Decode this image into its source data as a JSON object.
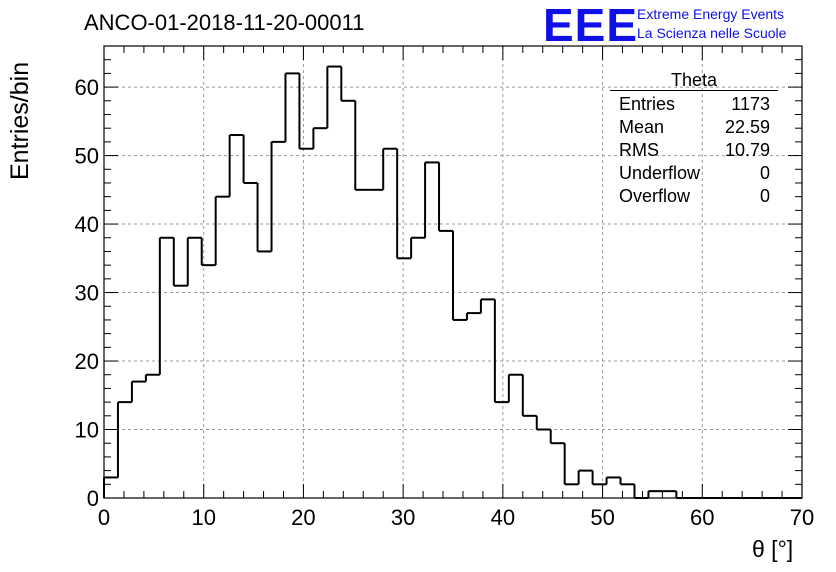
{
  "header": {
    "run_title": "ANCO-01-2018-11-20-00011",
    "logo_mark": "EEE",
    "logo_line1": "Extreme Energy Events",
    "logo_line2": "La Scienza nelle Scuole"
  },
  "stats": {
    "name": "Theta",
    "rows": [
      {
        "label": "Entries",
        "value": "1173"
      },
      {
        "label": "Mean",
        "value": "22.59"
      },
      {
        "label": "RMS",
        "value": "10.79"
      },
      {
        "label": "Underflow",
        "value": "0"
      },
      {
        "label": "Overflow",
        "value": "0"
      }
    ]
  },
  "colors": {
    "line": "#000000",
    "logo": "#1010e6",
    "grid": "#9a9a9a"
  },
  "chart_data": {
    "type": "histogram",
    "title": "ANCO-01-2018-11-20-00011",
    "xlabel": "θ [°]",
    "ylabel": "Entries/bin",
    "xlim": [
      0,
      70
    ],
    "ylim": [
      0,
      66
    ],
    "grid": true,
    "bin_width": 1.4,
    "xticks": [
      0,
      10,
      20,
      30,
      40,
      50,
      60,
      70
    ],
    "yticks": [
      0,
      10,
      20,
      30,
      40,
      50,
      60
    ],
    "values": [
      3,
      14,
      17,
      18,
      38,
      31,
      38,
      34,
      44,
      53,
      46,
      36,
      52,
      62,
      51,
      54,
      63,
      58,
      45,
      45,
      51,
      35,
      38,
      49,
      39,
      26,
      27,
      29,
      14,
      18,
      12,
      10,
      8,
      2,
      4,
      2,
      3,
      2,
      0,
      1,
      1,
      0,
      0,
      0,
      0,
      0,
      0,
      0,
      0,
      0
    ]
  }
}
